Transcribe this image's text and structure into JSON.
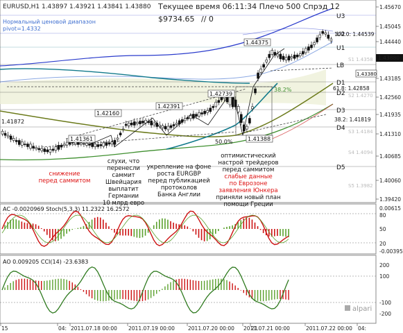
{
  "header": {
    "symbol_line": "EURUSD,H1  1.43897 1.43921 1.43841 1.43880",
    "info_line": "Текущее время 06:11:34 Плечо 500 Спрэд 12",
    "balance": "$9734.65",
    "balance_suffix": "// 0",
    "range_label": "Нормальный ценовой диапазон",
    "pivot_label": "pivot=1.4332"
  },
  "price_labels": {
    "p1": "1.44375",
    "p2": "1.42739",
    "p3": "1.42391",
    "p4": "1.42160",
    "p5": "1.41361",
    "p6": "1.41388",
    "p7": "1.43380",
    "p_left": "1.41872",
    "fib_100": "100.0: 1.44539",
    "fib_618": "61.8: 1.42858",
    "fib_382": "38.2: 1.41819",
    "fib_50": "50.0%",
    "fib_382_pct": "38.2%",
    "fib_618_pct": "61.8%"
  },
  "pivot_levels": [
    "U3",
    "U2",
    "U1",
    "LB",
    "D1",
    "D2",
    "D3",
    "D4",
    "D5"
  ],
  "pivot_faint": [
    "S1 1.4358",
    "S2 1.4270",
    "S3 1.4184",
    "S4 1.4094",
    "S5 1.3982"
  ],
  "price_axis": {
    "ticks": [
      "1.45670",
      "1.45045",
      "1.44440",
      "1.43880",
      "1.43185",
      "1.42560",
      "1.41935",
      "1.41310",
      "1.40685",
      "1.40060",
      "1.39420"
    ],
    "current": "1.43880"
  },
  "annotations": {
    "a1": "снижение\nперед саммитом",
    "a2": "слухи, что\nперенесли\nсаммит\nШвейцария\nвыплатит\nГермании\n10 млрд евро",
    "a3": "укрепление на фоне\nроста EURGBP\nперед публикацией\nпротоколов\nБанка Англии",
    "a4_black": "оптимистический\nнастрой трейдеров\nперед саммитом",
    "a4_red": "слабые данные\nпо Еврозоне\nзаявления Юнкера",
    "a4_black2": "приняли новый план\nпомощи Греции"
  },
  "ac_panel": {
    "label": "AC -0.0020969  Stoch(5,3,3) 11.2322 16.2572",
    "ticks": [
      "0.00615",
      "80",
      "50",
      "20",
      "-0.00395"
    ],
    "levels": [
      "80",
      "20"
    ]
  },
  "ao_panel": {
    "label": "AO 0.009205  CCI(14) -23.6383",
    "ticks": [
      "200",
      "100",
      "-100",
      "-200"
    ],
    "levels": [
      "100",
      "-100"
    ]
  },
  "time_axis": [
    "15",
    "04:",
    "2011.07.18 00:00",
    "2011.07.19 00:00",
    "2011.07.20 00:00",
    "2011.07.21 00:00",
    "21",
    "2011.07.22 00:00",
    "04:",
    "2011.07.23 00:00"
  ],
  "watermark": "alpari",
  "colors": {
    "candle_up": "#ffffff",
    "candle_down": "#111111",
    "ma_blue": "#2a3bcc",
    "ma_teal": "#117a8b",
    "ma_olive": "#6b7a1a",
    "ma_green": "#3f8f2f",
    "ac_red": "#cc1111",
    "red_text": "#dd1111",
    "panel_green": "#5aa02c",
    "band_fill": "#eef0d8"
  }
}
